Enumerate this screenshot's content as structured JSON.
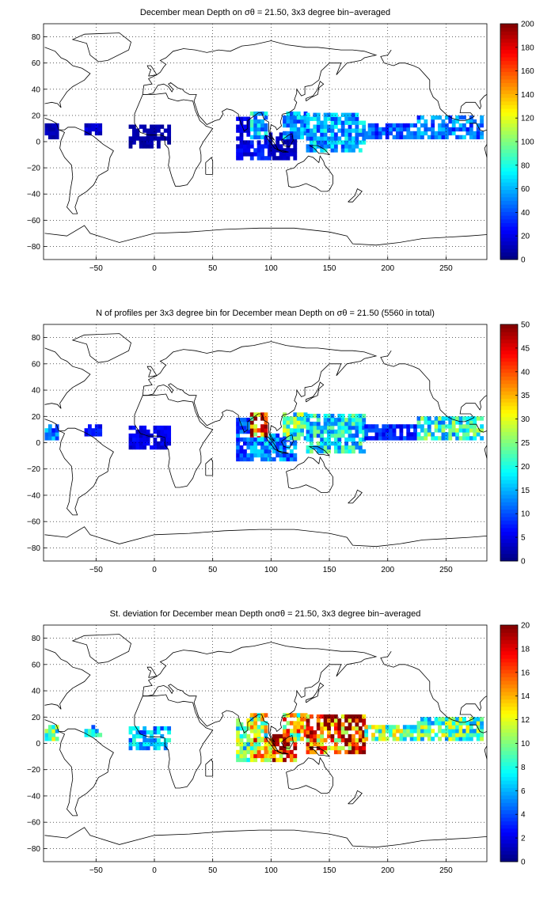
{
  "chart_data": [
    {
      "type": "heatmap",
      "title": "December mean Depth on σθ = 21.50, 3x3 degree bin−averaged",
      "colorbar": {
        "min": 0,
        "max": 200,
        "ticks": [
          "0",
          "20",
          "40",
          "60",
          "80",
          "100",
          "120",
          "140",
          "160",
          "180",
          "200"
        ]
      },
      "xlim": [
        -95,
        285
      ],
      "ylim": [
        -90,
        90
      ],
      "xticks": [
        "−50",
        "0",
        "50",
        "100",
        "150",
        "200",
        "250"
      ],
      "yticks": [
        "80",
        "60",
        "40",
        "20",
        "0",
        "−20",
        "−40",
        "−60",
        "−80"
      ],
      "grid": "dotted",
      "colormap": "jet",
      "regions": [
        {
          "x": [
            -94,
            -82
          ],
          "y": [
            2,
            14
          ],
          "v": 10
        },
        {
          "x": [
            -60,
            -45
          ],
          "y": [
            5,
            14
          ],
          "v": 15
        },
        {
          "x": [
            -22,
            12
          ],
          "y": [
            -5,
            11
          ],
          "v": 8
        },
        {
          "x": [
            70,
            82
          ],
          "y": [
            -14,
            18
          ],
          "v": 20
        },
        {
          "x": [
            82,
            96
          ],
          "y": [
            2,
            22
          ],
          "v": 65
        },
        {
          "x": [
            82,
            100
          ],
          "y": [
            -14,
            2
          ],
          "v": 28
        },
        {
          "x": [
            98,
            120
          ],
          "y": [
            -14,
            5
          ],
          "v": 12
        },
        {
          "x": [
            110,
            130
          ],
          "y": [
            2,
            22
          ],
          "v": 55
        },
        {
          "x": [
            130,
            180
          ],
          "y": [
            -8,
            20
          ],
          "v": 58
        },
        {
          "x": [
            180,
            225
          ],
          "y": [
            2,
            14
          ],
          "v": 40
        },
        {
          "x": [
            225,
            280
          ],
          "y": [
            2,
            18
          ],
          "v": 48
        }
      ]
    },
    {
      "type": "heatmap",
      "title": "N of profiles per 3x3 degree bin for December mean Depth on σθ = 21.50 (5560 in total)",
      "colorbar": {
        "min": 0,
        "max": 50,
        "ticks": [
          "0",
          "5",
          "10",
          "15",
          "20",
          "25",
          "30",
          "35",
          "40",
          "45",
          "50"
        ]
      },
      "xlim": [
        -95,
        285
      ],
      "ylim": [
        -90,
        90
      ],
      "xticks": [
        "−50",
        "0",
        "50",
        "100",
        "150",
        "200",
        "250"
      ],
      "yticks": [
        "80",
        "60",
        "40",
        "20",
        "0",
        "−20",
        "−40",
        "−60",
        "−80"
      ],
      "grid": "dotted",
      "colormap": "jet",
      "regions": [
        {
          "x": [
            -94,
            -82
          ],
          "y": [
            2,
            14
          ],
          "v": 12
        },
        {
          "x": [
            -60,
            -45
          ],
          "y": [
            5,
            14
          ],
          "v": 6
        },
        {
          "x": [
            -22,
            12
          ],
          "y": [
            -5,
            11
          ],
          "v": 5
        },
        {
          "x": [
            70,
            82
          ],
          "y": [
            -14,
            18
          ],
          "v": 10
        },
        {
          "x": [
            82,
            96
          ],
          "y": [
            2,
            22
          ],
          "v": 40
        },
        {
          "x": [
            82,
            100
          ],
          "y": [
            -14,
            2
          ],
          "v": 14
        },
        {
          "x": [
            98,
            120
          ],
          "y": [
            -14,
            5
          ],
          "v": 12
        },
        {
          "x": [
            110,
            130
          ],
          "y": [
            2,
            22
          ],
          "v": 22
        },
        {
          "x": [
            130,
            180
          ],
          "y": [
            -8,
            20
          ],
          "v": 18
        },
        {
          "x": [
            180,
            225
          ],
          "y": [
            2,
            14
          ],
          "v": 8
        },
        {
          "x": [
            225,
            280
          ],
          "y": [
            2,
            18
          ],
          "v": 20
        }
      ]
    },
    {
      "type": "heatmap",
      "title": "St. deviation for December mean Depth onσθ = 21.50, 3x3 degree bin−averaged",
      "colorbar": {
        "min": 0,
        "max": 20,
        "ticks": [
          "0",
          "2",
          "4",
          "6",
          "8",
          "10",
          "12",
          "14",
          "16",
          "18",
          "20"
        ]
      },
      "xlim": [
        -95,
        285
      ],
      "ylim": [
        -90,
        90
      ],
      "xticks": [
        "−50",
        "0",
        "50",
        "100",
        "150",
        "200",
        "250"
      ],
      "yticks": [
        "80",
        "60",
        "40",
        "20",
        "0",
        "−20",
        "−40",
        "−60",
        "−80"
      ],
      "grid": "dotted",
      "colormap": "jet",
      "regions": [
        {
          "x": [
            -94,
            -82
          ],
          "y": [
            2,
            14
          ],
          "v": 9
        },
        {
          "x": [
            -60,
            -45
          ],
          "y": [
            5,
            14
          ],
          "v": 7
        },
        {
          "x": [
            -22,
            12
          ],
          "y": [
            -5,
            11
          ],
          "v": 6
        },
        {
          "x": [
            70,
            82
          ],
          "y": [
            -14,
            18
          ],
          "v": 9
        },
        {
          "x": [
            82,
            96
          ],
          "y": [
            2,
            22
          ],
          "v": 11
        },
        {
          "x": [
            82,
            100
          ],
          "y": [
            -14,
            2
          ],
          "v": 13
        },
        {
          "x": [
            98,
            120
          ],
          "y": [
            -14,
            5
          ],
          "v": 16
        },
        {
          "x": [
            110,
            130
          ],
          "y": [
            2,
            22
          ],
          "v": 13
        },
        {
          "x": [
            130,
            180
          ],
          "y": [
            -8,
            20
          ],
          "v": 17
        },
        {
          "x": [
            180,
            225
          ],
          "y": [
            2,
            14
          ],
          "v": 10
        },
        {
          "x": [
            225,
            280
          ],
          "y": [
            2,
            18
          ],
          "v": 9
        }
      ]
    }
  ]
}
